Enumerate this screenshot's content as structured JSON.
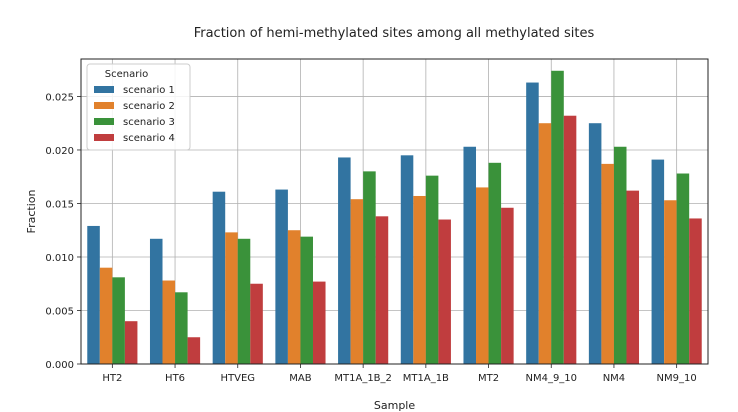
{
  "chart_data": {
    "type": "bar",
    "title": "Fraction of hemi-methylated sites among all methylated sites",
    "xlabel": "Sample",
    "ylabel": "Fraction",
    "ylim": [
      0,
      0.0285
    ],
    "yticks": [
      "0.000",
      "0.005",
      "0.010",
      "0.015",
      "0.020",
      "0.025"
    ],
    "ytick_values": [
      0,
      0.005,
      0.01,
      0.015,
      0.02,
      0.025
    ],
    "grid": true,
    "categories": [
      "HT2",
      "HT6",
      "HTVEG",
      "MAB",
      "MT1A_1B_2",
      "MT1A_1B",
      "MT2",
      "NM4_9_10",
      "NM4",
      "NM9_10"
    ],
    "legend": {
      "title": "Scenario",
      "position": "top-left"
    },
    "series": [
      {
        "name": "scenario 1",
        "color": "#3274a1",
        "values": [
          0.0129,
          0.0117,
          0.0161,
          0.0163,
          0.0193,
          0.0195,
          0.0203,
          0.0263,
          0.0225,
          0.0191
        ]
      },
      {
        "name": "scenario 2",
        "color": "#e1812c",
        "values": [
          0.009,
          0.0078,
          0.0123,
          0.0125,
          0.0154,
          0.0157,
          0.0165,
          0.0225,
          0.0187,
          0.0153
        ]
      },
      {
        "name": "scenario 3",
        "color": "#3a923a",
        "values": [
          0.0081,
          0.0067,
          0.0117,
          0.0119,
          0.018,
          0.0176,
          0.0188,
          0.0274,
          0.0203,
          0.0178
        ]
      },
      {
        "name": "scenario 4",
        "color": "#c03d3e",
        "values": [
          0.004,
          0.0025,
          0.0075,
          0.0077,
          0.0138,
          0.0135,
          0.0146,
          0.0232,
          0.0162,
          0.0136
        ]
      }
    ]
  }
}
